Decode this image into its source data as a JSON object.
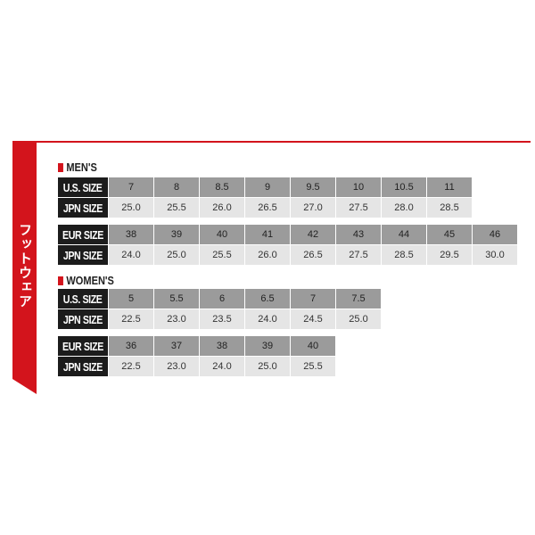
{
  "side_tab": "フットウェア",
  "colors": {
    "accent": "#d3141c",
    "label_bg": "#1c1c1c",
    "size_row": "#9b9b9b",
    "jpn_row": "#e5e5e5"
  },
  "mens": {
    "title": "MEN'S",
    "us": {
      "label": "U.S. SIZE",
      "values": [
        "7",
        "8",
        "8.5",
        "9",
        "9.5",
        "10",
        "10.5",
        "11"
      ]
    },
    "us_jpn": {
      "label": "JPN SIZE",
      "values": [
        "25.0",
        "25.5",
        "26.0",
        "26.5",
        "27.0",
        "27.5",
        "28.0",
        "28.5"
      ]
    },
    "eur": {
      "label": "EUR SIZE",
      "values": [
        "38",
        "39",
        "40",
        "41",
        "42",
        "43",
        "44",
        "45",
        "46"
      ]
    },
    "eur_jpn": {
      "label": "JPN SIZE",
      "values": [
        "24.0",
        "25.0",
        "25.5",
        "26.0",
        "26.5",
        "27.5",
        "28.5",
        "29.5",
        "30.0"
      ]
    }
  },
  "womens": {
    "title": "WOMEN'S",
    "us": {
      "label": "U.S. SIZE",
      "values": [
        "5",
        "5.5",
        "6",
        "6.5",
        "7",
        "7.5"
      ]
    },
    "us_jpn": {
      "label": "JPN SIZE",
      "values": [
        "22.5",
        "23.0",
        "23.5",
        "24.0",
        "24.5",
        "25.0"
      ]
    },
    "eur": {
      "label": "EUR SIZE",
      "values": [
        "36",
        "37",
        "38",
        "39",
        "40"
      ]
    },
    "eur_jpn": {
      "label": "JPN SIZE",
      "values": [
        "22.5",
        "23.0",
        "24.0",
        "25.0",
        "25.5"
      ]
    }
  }
}
